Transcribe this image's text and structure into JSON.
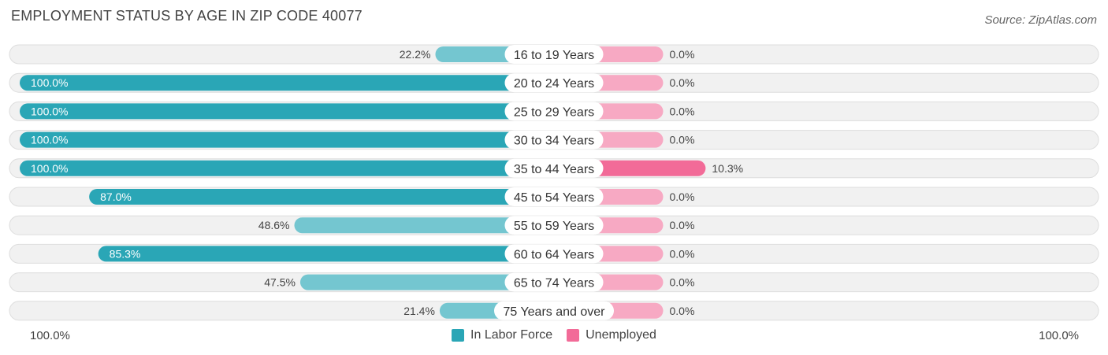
{
  "title": "EMPLOYMENT STATUS BY AGE IN ZIP CODE 40077",
  "source": "Source: ZipAtlas.com",
  "colors": {
    "labor_strong": "#2aa6b6",
    "labor_light": "#74c6d0",
    "unemployed_strong": "#f26b98",
    "unemployed_light": "#f7a9c3",
    "row_bg": "#f1f1f1",
    "row_border": "#dddddd"
  },
  "chart_data": {
    "type": "bar",
    "orientation": "horizontal-diverging",
    "categories": [
      "16 to 19 Years",
      "20 to 24 Years",
      "25 to 29 Years",
      "30 to 34 Years",
      "35 to 44 Years",
      "45 to 54 Years",
      "55 to 59 Years",
      "60 to 64 Years",
      "65 to 74 Years",
      "75 Years and over"
    ],
    "series": [
      {
        "name": "In Labor Force",
        "values": [
          22.2,
          100.0,
          100.0,
          100.0,
          100.0,
          87.0,
          48.6,
          85.3,
          47.5,
          21.4
        ],
        "labels": [
          "22.2%",
          "100.0%",
          "100.0%",
          "100.0%",
          "100.0%",
          "87.0%",
          "48.6%",
          "85.3%",
          "47.5%",
          "21.4%"
        ]
      },
      {
        "name": "Unemployed",
        "values": [
          0.0,
          0.0,
          0.0,
          0.0,
          10.3,
          0.0,
          0.0,
          0.0,
          0.0,
          0.0
        ],
        "labels": [
          "0.0%",
          "0.0%",
          "0.0%",
          "0.0%",
          "10.3%",
          "0.0%",
          "0.0%",
          "0.0%",
          "0.0%",
          "0.0%"
        ]
      }
    ],
    "xlim": [
      -100,
      100
    ],
    "axis_left_label": "100.0%",
    "axis_right_label": "100.0%",
    "legend_position": "bottom-center"
  }
}
